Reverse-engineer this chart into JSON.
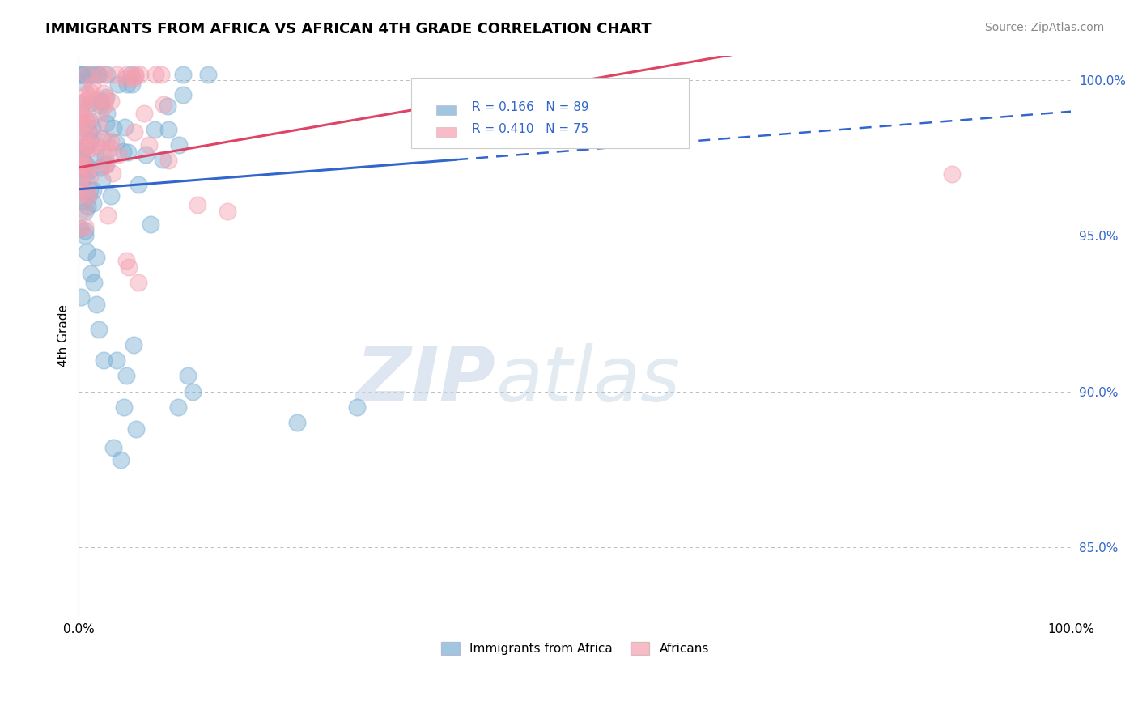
{
  "title": "IMMIGRANTS FROM AFRICA VS AFRICAN 4TH GRADE CORRELATION CHART",
  "source": "Source: ZipAtlas.com",
  "ylabel": "4th Grade",
  "xmin": 0.0,
  "xmax": 1.0,
  "ymin": 0.828,
  "ymax": 1.008,
  "yticks": [
    0.85,
    0.9,
    0.95,
    1.0
  ],
  "ytick_labels": [
    "85.0%",
    "90.0%",
    "95.0%",
    "100.0%"
  ],
  "xtick_labels": [
    "0.0%",
    "100.0%"
  ],
  "legend_label1": "Immigrants from Africa",
  "legend_label2": "Africans",
  "blue_color": "#7BAFD4",
  "pink_color": "#F4A0B0",
  "trend_blue": "#3366CC",
  "trend_pink": "#DD4466",
  "watermark_zip": "ZIP",
  "watermark_atlas": "atlas"
}
